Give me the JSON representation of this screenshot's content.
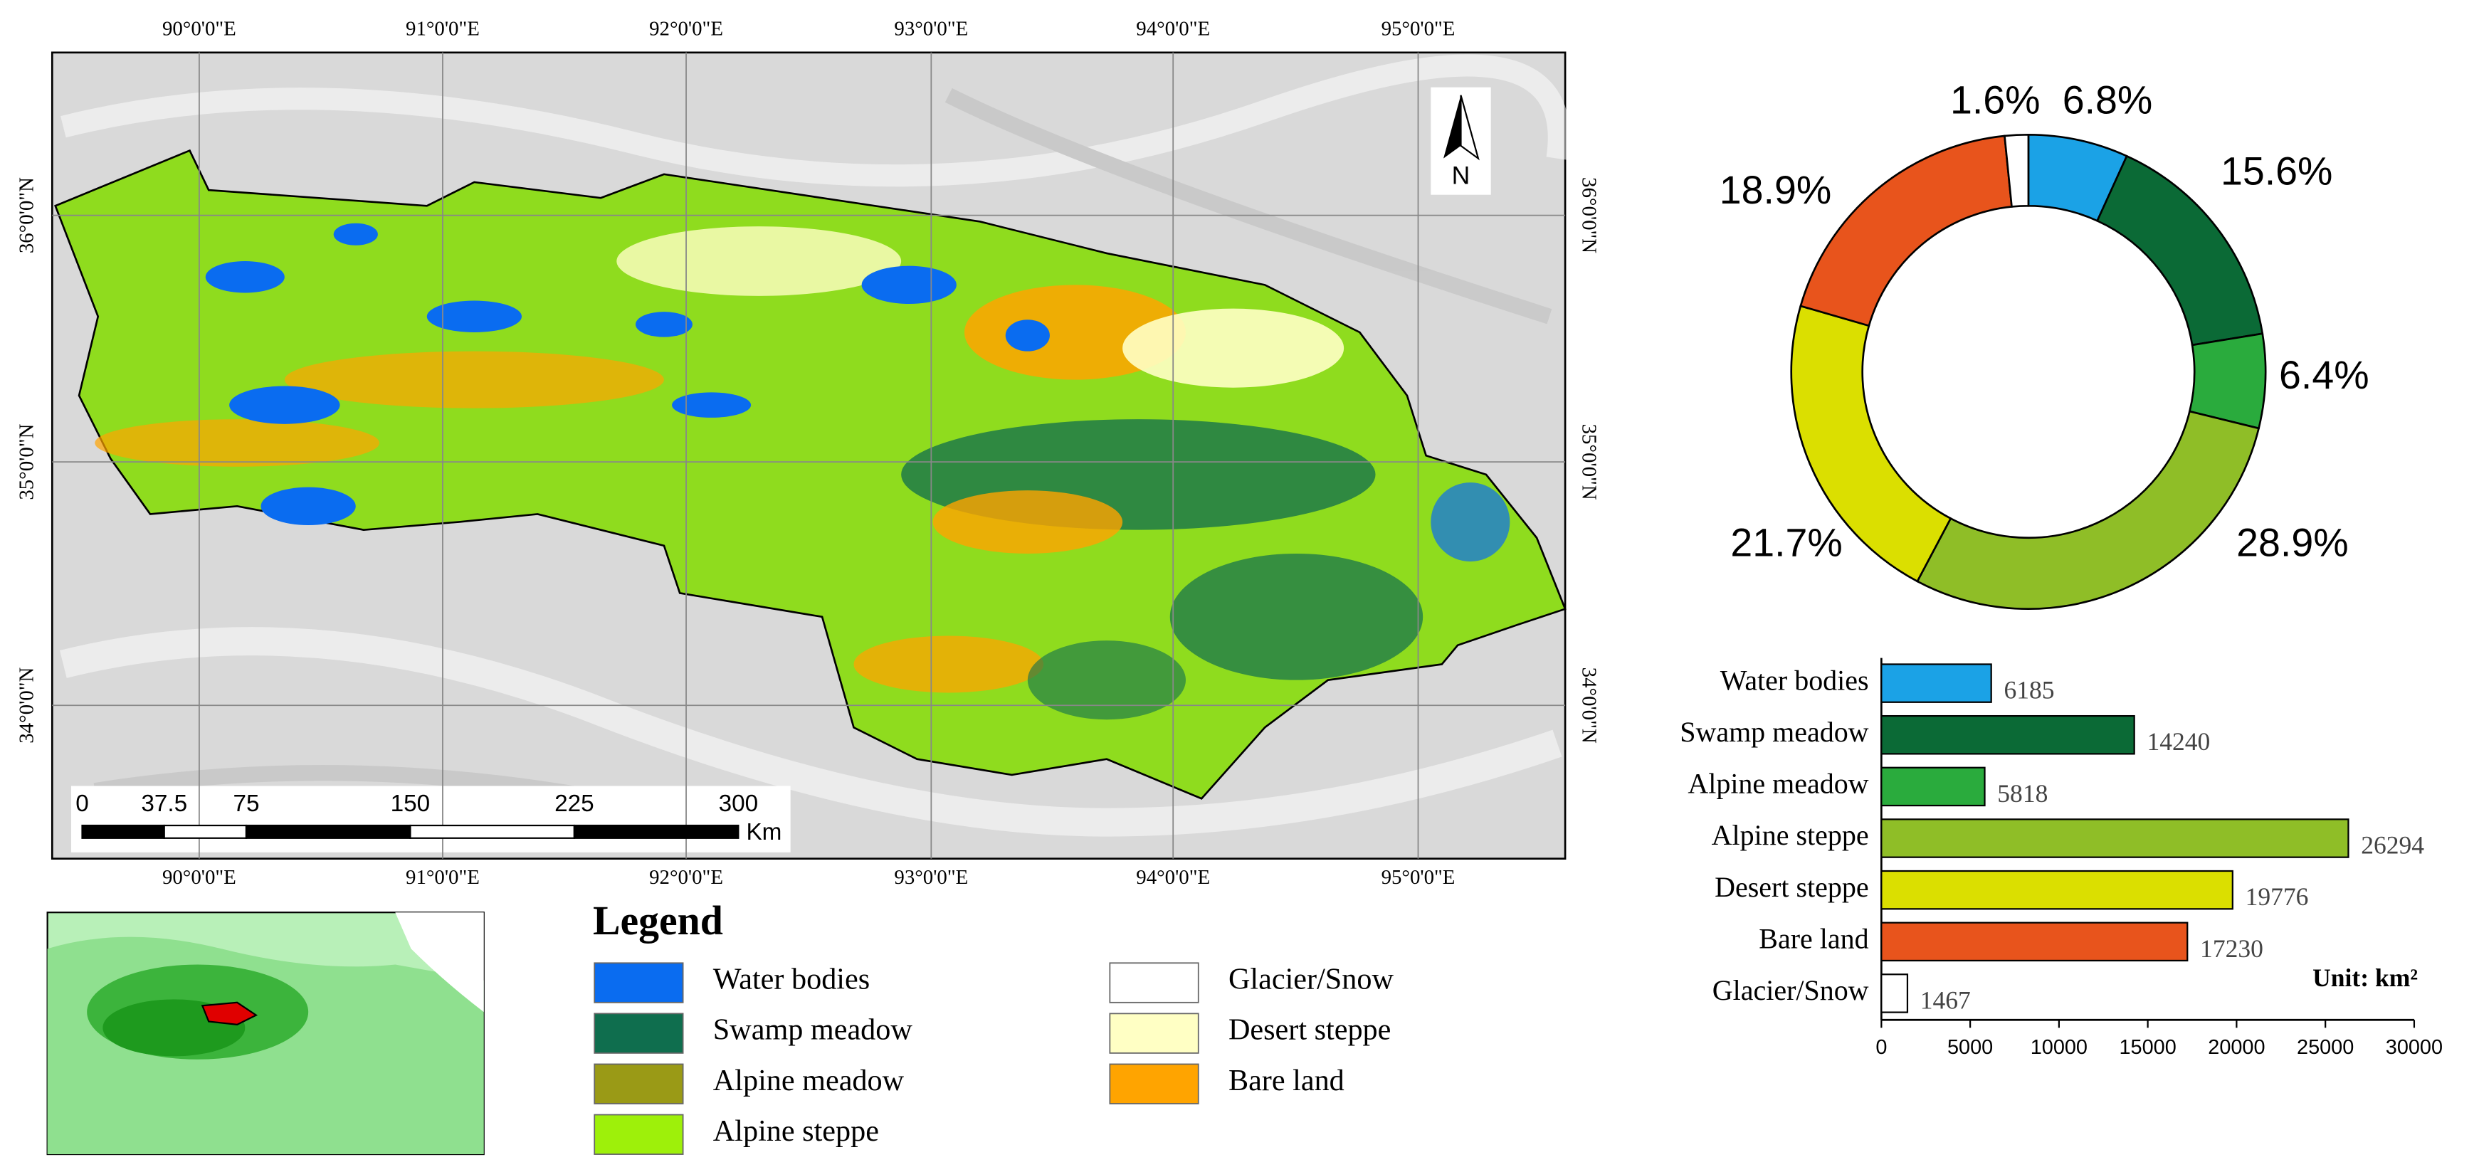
{
  "map": {
    "lon_labels": [
      "90°0'0\"E",
      "91°0'0\"E",
      "92°0'0\"E",
      "93°0'0\"E",
      "94°0'0\"E",
      "95°0'0\"E"
    ],
    "lat_labels": [
      "36°0'0\"N",
      "35°0'0\"N",
      "34°0'0\"N"
    ],
    "north_label": "N",
    "scale_labels": [
      0,
      37.5,
      75,
      150,
      225,
      300
    ],
    "scale_unit": "Km",
    "legend_title": "Legend",
    "legend": [
      {
        "label": "Water bodies",
        "color": "#0a6cf0"
      },
      {
        "label": "Swamp meadow",
        "color": "#0f6e4e"
      },
      {
        "label": "Alpine meadow",
        "color": "#9a9a16"
      },
      {
        "label": "Alpine steppe",
        "color": "#9ef00a"
      },
      {
        "label": "Glacier/Snow",
        "color": "#ffffff"
      },
      {
        "label": "Desert steppe",
        "color": "#ffffc4"
      },
      {
        "label": "Bare land",
        "color": "#ffa400"
      }
    ]
  },
  "chart_data": [
    {
      "type": "donut",
      "values": [
        6.8,
        15.6,
        6.4,
        28.9,
        21.7,
        18.9,
        1.6
      ],
      "value_labels": [
        "6.8%",
        "15.6%",
        "6.4%",
        "28.9%",
        "21.7%",
        "18.9%",
        "1.6%"
      ],
      "colors": [
        "#1ba2e6",
        "#0b6a36",
        "#2aab3d",
        "#8fbe27",
        "#dbdf00",
        "#e8541c",
        "#ffffff"
      ]
    },
    {
      "type": "bar",
      "categories": [
        "Water bodies",
        "Swamp meadow",
        "Alpine meadow",
        "Alpine steppe",
        "Desert steppe",
        "Bare land",
        "Glacier/Snow"
      ],
      "values": [
        6185,
        14240,
        5818,
        26294,
        19776,
        17230,
        1467
      ],
      "colors": [
        "#1ba2e6",
        "#0b6a36",
        "#2aab3d",
        "#8fbe27",
        "#dbdf00",
        "#e8541c",
        "#ffffff"
      ],
      "xlim": [
        0,
        30000
      ],
      "xticks": [
        0,
        5000,
        10000,
        15000,
        20000,
        25000,
        30000
      ],
      "annotation": "Unit: km²"
    }
  ]
}
